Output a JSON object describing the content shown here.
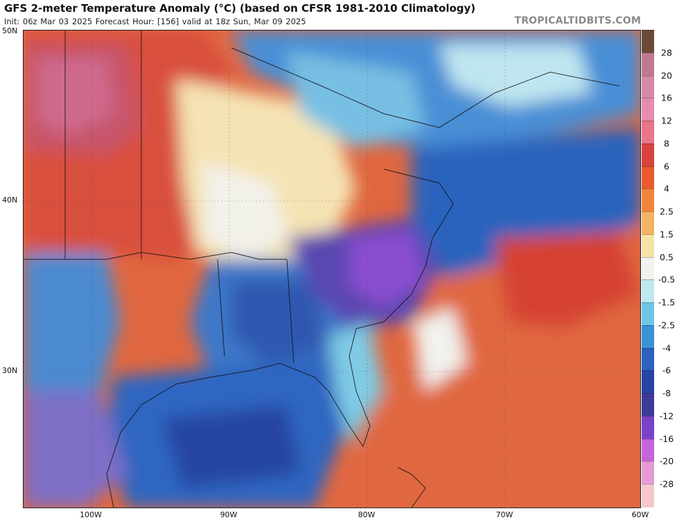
{
  "header": {
    "title": "GFS 2-meter Temperature Anomaly (°C) (based on CFSR 1981-2010 Climatology)",
    "run_info": "Init: 06z Mar 03 2025   Forecast Hour: [156]   valid at 18z Sun, Mar 09 2025",
    "brand": "TROPICALTIDBITS.COM"
  },
  "map": {
    "lat_labels": [
      "50N",
      "40N",
      "30N"
    ],
    "lon_labels": [
      "100W",
      "90W",
      "80W",
      "70W",
      "60W"
    ]
  },
  "colorbar": {
    "labels": [
      "28",
      "20",
      "16",
      "12",
      "8",
      "6",
      "4",
      "2.5",
      "1.5",
      "0.5",
      "-0.5",
      "-1.5",
      "-2.5",
      "-4",
      "-6",
      "-8",
      "-12",
      "-16",
      "-20",
      "-28"
    ],
    "colors": [
      "#6b4a35",
      "#c07a8f",
      "#d48aa6",
      "#e78bb0",
      "#e8758a",
      "#d9423d",
      "#ea5a2e",
      "#f0843c",
      "#f5b264",
      "#f5e3a6",
      "#f2f2ee",
      "#bfe8f0",
      "#6fc6e6",
      "#3a92d6",
      "#2a63bd",
      "#2545a2",
      "#3d3a9a",
      "#7a42c8",
      "#c266d9",
      "#e59ad6",
      "#f4c8cc"
    ]
  }
}
